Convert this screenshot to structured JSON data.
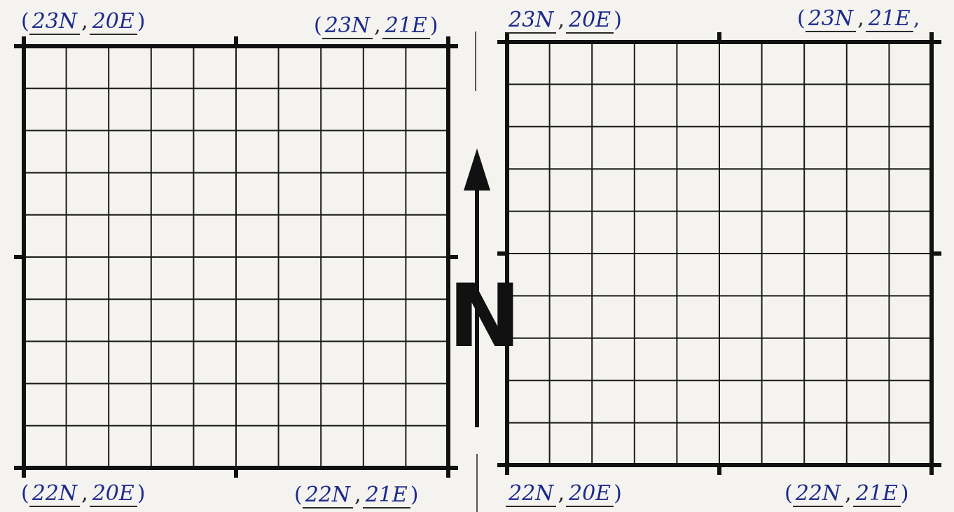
{
  "left_grid": {
    "corners": {
      "top_left": {
        "lat": "23N",
        "lon": "20E"
      },
      "top_right": {
        "lat": "23N",
        "lon": "21E"
      },
      "bottom_left": {
        "lat": "22N",
        "lon": "20E"
      },
      "bottom_right": {
        "lat": "22N",
        "lon": "21E"
      }
    }
  },
  "right_grid": {
    "corners": {
      "top_left": {
        "lat": "23N",
        "lon": "20E"
      },
      "top_right": {
        "lat": "23N",
        "lon": "21E"
      },
      "bottom_left": {
        "lat": "22N",
        "lon": "20E"
      },
      "bottom_right": {
        "lat": "22N",
        "lon": "21E"
      }
    }
  },
  "north_arrow": {
    "label": "N"
  },
  "colors": {
    "ink": "#111111",
    "pen": "#1c2a8a",
    "paper": "#f4f3ef"
  }
}
